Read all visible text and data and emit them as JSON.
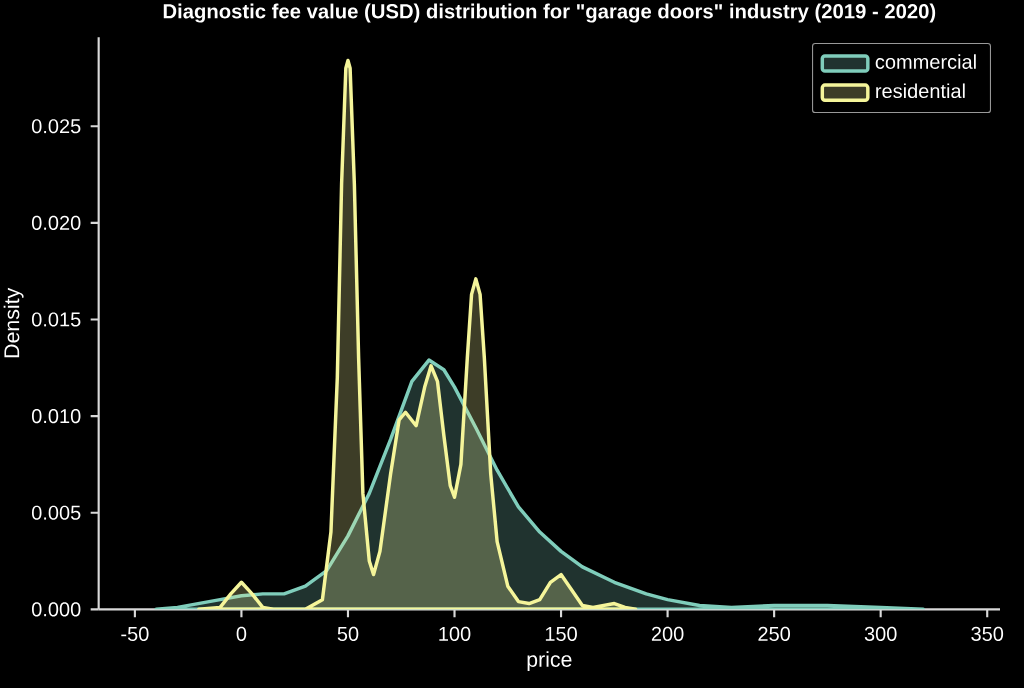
{
  "chart_data": {
    "type": "area",
    "title": "Diagnostic fee value (USD) distribution for \"garage doors\" industry (2019 - 2020)",
    "xlabel": "price",
    "ylabel": "Density",
    "xlim": [
      -67,
      356
    ],
    "ylim": [
      0,
      0.0296
    ],
    "xticks": [
      -50,
      0,
      50,
      100,
      150,
      200,
      250,
      300,
      350
    ],
    "yticks": [
      {
        "value": 0,
        "label": "0.000"
      },
      {
        "value": 0.005,
        "label": "0.005"
      },
      {
        "value": 0.01,
        "label": "0.010"
      },
      {
        "value": 0.015,
        "label": "0.015"
      },
      {
        "value": 0.02,
        "label": "0.020"
      },
      {
        "value": 0.025,
        "label": "0.025"
      }
    ],
    "legend": "top right",
    "series": [
      {
        "name": "commercial",
        "color": "#7fcdbb",
        "x": [
          -40,
          -30,
          -20,
          -10,
          0,
          10,
          20,
          30,
          40,
          50,
          60,
          70,
          80,
          88,
          95,
          100,
          110,
          120,
          130,
          140,
          150,
          160,
          175,
          190,
          200,
          215,
          230,
          250,
          275,
          300,
          320
        ],
        "values": [
          0,
          0.0001,
          0.0003,
          0.0005,
          0.0007,
          0.0008,
          0.0008,
          0.0012,
          0.002,
          0.0038,
          0.006,
          0.0088,
          0.0118,
          0.0129,
          0.0124,
          0.0115,
          0.0094,
          0.0072,
          0.0053,
          0.004,
          0.003,
          0.0022,
          0.0014,
          0.0008,
          0.0005,
          0.0002,
          0.0001,
          0.0002,
          0.0002,
          0.0001,
          0
        ]
      },
      {
        "name": "residential",
        "color": "#f5f59a",
        "x": [
          -20,
          -10,
          -5,
          0,
          5,
          10,
          15,
          30,
          38,
          42,
          45,
          47,
          49,
          50,
          51,
          53,
          55,
          57,
          60,
          62,
          65,
          70,
          74,
          77,
          82,
          86,
          89,
          92,
          95,
          98,
          100,
          103,
          106,
          108,
          110,
          112,
          114,
          117,
          120,
          125,
          130,
          135,
          140,
          145,
          150,
          155,
          160,
          165,
          170,
          175,
          180,
          185
        ],
        "values": [
          0,
          0.0001,
          0.0008,
          0.0014,
          0.0008,
          0.0001,
          0,
          0,
          0.0005,
          0.004,
          0.012,
          0.022,
          0.028,
          0.0284,
          0.028,
          0.022,
          0.013,
          0.006,
          0.0025,
          0.0018,
          0.003,
          0.007,
          0.0098,
          0.0102,
          0.0095,
          0.0115,
          0.0126,
          0.0118,
          0.009,
          0.0064,
          0.0058,
          0.0075,
          0.013,
          0.0163,
          0.0171,
          0.0163,
          0.013,
          0.007,
          0.0035,
          0.0012,
          0.0004,
          0.0003,
          0.0005,
          0.0014,
          0.0018,
          0.001,
          0.0002,
          0.0001,
          0.0002,
          0.0003,
          0.0001,
          0
        ]
      }
    ]
  }
}
